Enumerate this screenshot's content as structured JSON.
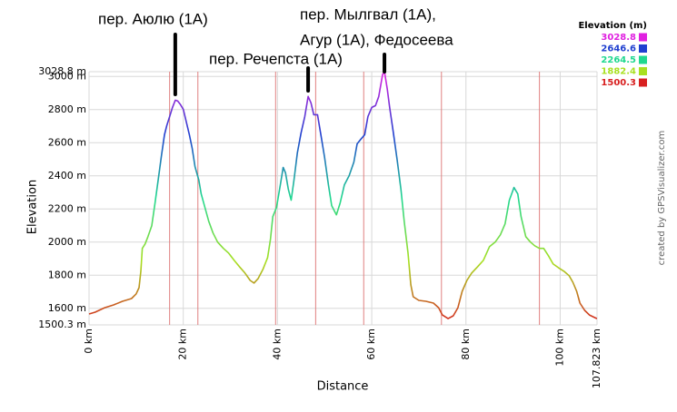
{
  "chart_data": {
    "type": "line",
    "y_label": "Elevation",
    "x_label": "Distance",
    "credit": "created by GPSVisualizer.com",
    "xlim": [
      0,
      107.823
    ],
    "ylim": [
      1500.3,
      3028.8
    ],
    "xticks": [
      {
        "value": 0,
        "label": "0 km"
      },
      {
        "value": 20,
        "label": "20 km"
      },
      {
        "value": 40,
        "label": "40 km"
      },
      {
        "value": 60,
        "label": "60 km"
      },
      {
        "value": 80,
        "label": "80 km"
      },
      {
        "value": 100,
        "label": "100 km"
      },
      {
        "value": 107.823,
        "label": "107.823 km"
      }
    ],
    "yticks": [
      {
        "value": 1500.3,
        "label": "1500.3 m"
      },
      {
        "value": 1600,
        "label": "1600 m"
      },
      {
        "value": 1800,
        "label": "1800 m"
      },
      {
        "value": 2000,
        "label": "2000 m"
      },
      {
        "value": 2200,
        "label": "2200 m"
      },
      {
        "value": 2400,
        "label": "2400 m"
      },
      {
        "value": 2600,
        "label": "2600 m"
      },
      {
        "value": 2800,
        "label": "2800 m"
      },
      {
        "value": 3000,
        "label": "3000 m"
      },
      {
        "value": 3028.8,
        "label": "3028.8 m"
      }
    ],
    "grid": true,
    "waypoints_x": [
      17.1,
      23.1,
      39.6,
      48.1,
      58.3,
      74.8,
      95.6
    ],
    "waypoint_color": "#e08080",
    "legend": {
      "title": "Elevation (m)",
      "position": "top-right",
      "items": [
        {
          "label": 3028.8,
          "color": "#e020e0"
        },
        {
          "label": 2646.6,
          "color": "#2040d0"
        },
        {
          "label": 2264.5,
          "color": "#20d890"
        },
        {
          "label": 1882.4,
          "color": "#a8e020"
        },
        {
          "label": 1500.3,
          "color": "#d82020"
        }
      ]
    },
    "annotations": [
      {
        "lines": [
          "пер. Аюлю (1А)"
        ],
        "x": 18.3
      },
      {
        "lines": [
          "пер. Речепста (1А)"
        ],
        "x": 46.5
      },
      {
        "lines": [
          "пер. Мылгвал (1А),",
          "Агур (1А), Федосеева"
        ],
        "x": 62.7
      }
    ],
    "x": [
      0,
      1.3,
      3.3,
      5.2,
      7.1,
      9,
      10,
      10.6,
      11,
      11.3,
      11.9,
      12.5,
      13.3,
      14,
      14.8,
      15.4,
      16,
      16.5,
      17.1,
      17.7,
      18.3,
      18.8,
      19.4,
      20,
      20.6,
      21.3,
      21.9,
      22.5,
      23.3,
      23.8,
      24.6,
      25.4,
      26.3,
      27.3,
      28.5,
      29.6,
      30.8,
      31.9,
      33.1,
      34.2,
      35,
      35.9,
      36.9,
      37.9,
      38.5,
      39,
      39.8,
      40.6,
      41.2,
      41.7,
      42.3,
      42.9,
      43.5,
      44.2,
      45,
      45.8,
      46.5,
      47.1,
      47.7,
      48.5,
      49.2,
      50,
      50.8,
      51.5,
      52.5,
      53.3,
      54.2,
      55.2,
      56.2,
      56.9,
      57.7,
      58.5,
      59.2,
      60,
      60.8,
      61.5,
      62.3,
      62.7,
      63.3,
      63.8,
      64.6,
      65.4,
      66.2,
      66.9,
      67.7,
      68.3,
      68.8,
      70,
      71.5,
      73.1,
      74.2,
      75,
      76.2,
      77.3,
      78.3,
      79.2,
      80.2,
      81.2,
      82.5,
      83.7,
      85,
      86.2,
      87.3,
      88.3,
      89.2,
      90.2,
      91,
      91.7,
      92.7,
      93.7,
      94.6,
      95.6,
      96.5,
      97.5,
      98.5,
      99.6,
      100.8,
      101.9,
      102.7,
      103.5,
      104.2,
      105.2,
      106.2,
      107.8
    ],
    "values": [
      1566,
      1577,
      1604,
      1621,
      1643,
      1659,
      1687,
      1725,
      1824,
      1962,
      1989,
      2033,
      2099,
      2236,
      2401,
      2527,
      2648,
      2703,
      2758,
      2813,
      2857,
      2852,
      2830,
      2802,
      2731,
      2648,
      2566,
      2456,
      2374,
      2291,
      2209,
      2126,
      2055,
      2000,
      1962,
      1934,
      1890,
      1852,
      1813,
      1769,
      1753,
      1780,
      1835,
      1907,
      2016,
      2154,
      2209,
      2346,
      2451,
      2418,
      2319,
      2253,
      2374,
      2538,
      2659,
      2758,
      2879,
      2841,
      2769,
      2769,
      2648,
      2511,
      2346,
      2220,
      2165,
      2236,
      2346,
      2401,
      2483,
      2593,
      2621,
      2648,
      2758,
      2813,
      2824,
      2879,
      3011,
      3028.8,
      2923,
      2813,
      2659,
      2494,
      2319,
      2126,
      1934,
      1742,
      1670,
      1648,
      1643,
      1632,
      1604,
      1560,
      1538,
      1555,
      1604,
      1703,
      1769,
      1813,
      1852,
      1890,
      1973,
      2000,
      2044,
      2110,
      2253,
      2330,
      2291,
      2154,
      2033,
      2000,
      1978,
      1962,
      1962,
      1918,
      1868,
      1846,
      1824,
      1797,
      1758,
      1703,
      1632,
      1588,
      1560,
      1538
    ]
  }
}
